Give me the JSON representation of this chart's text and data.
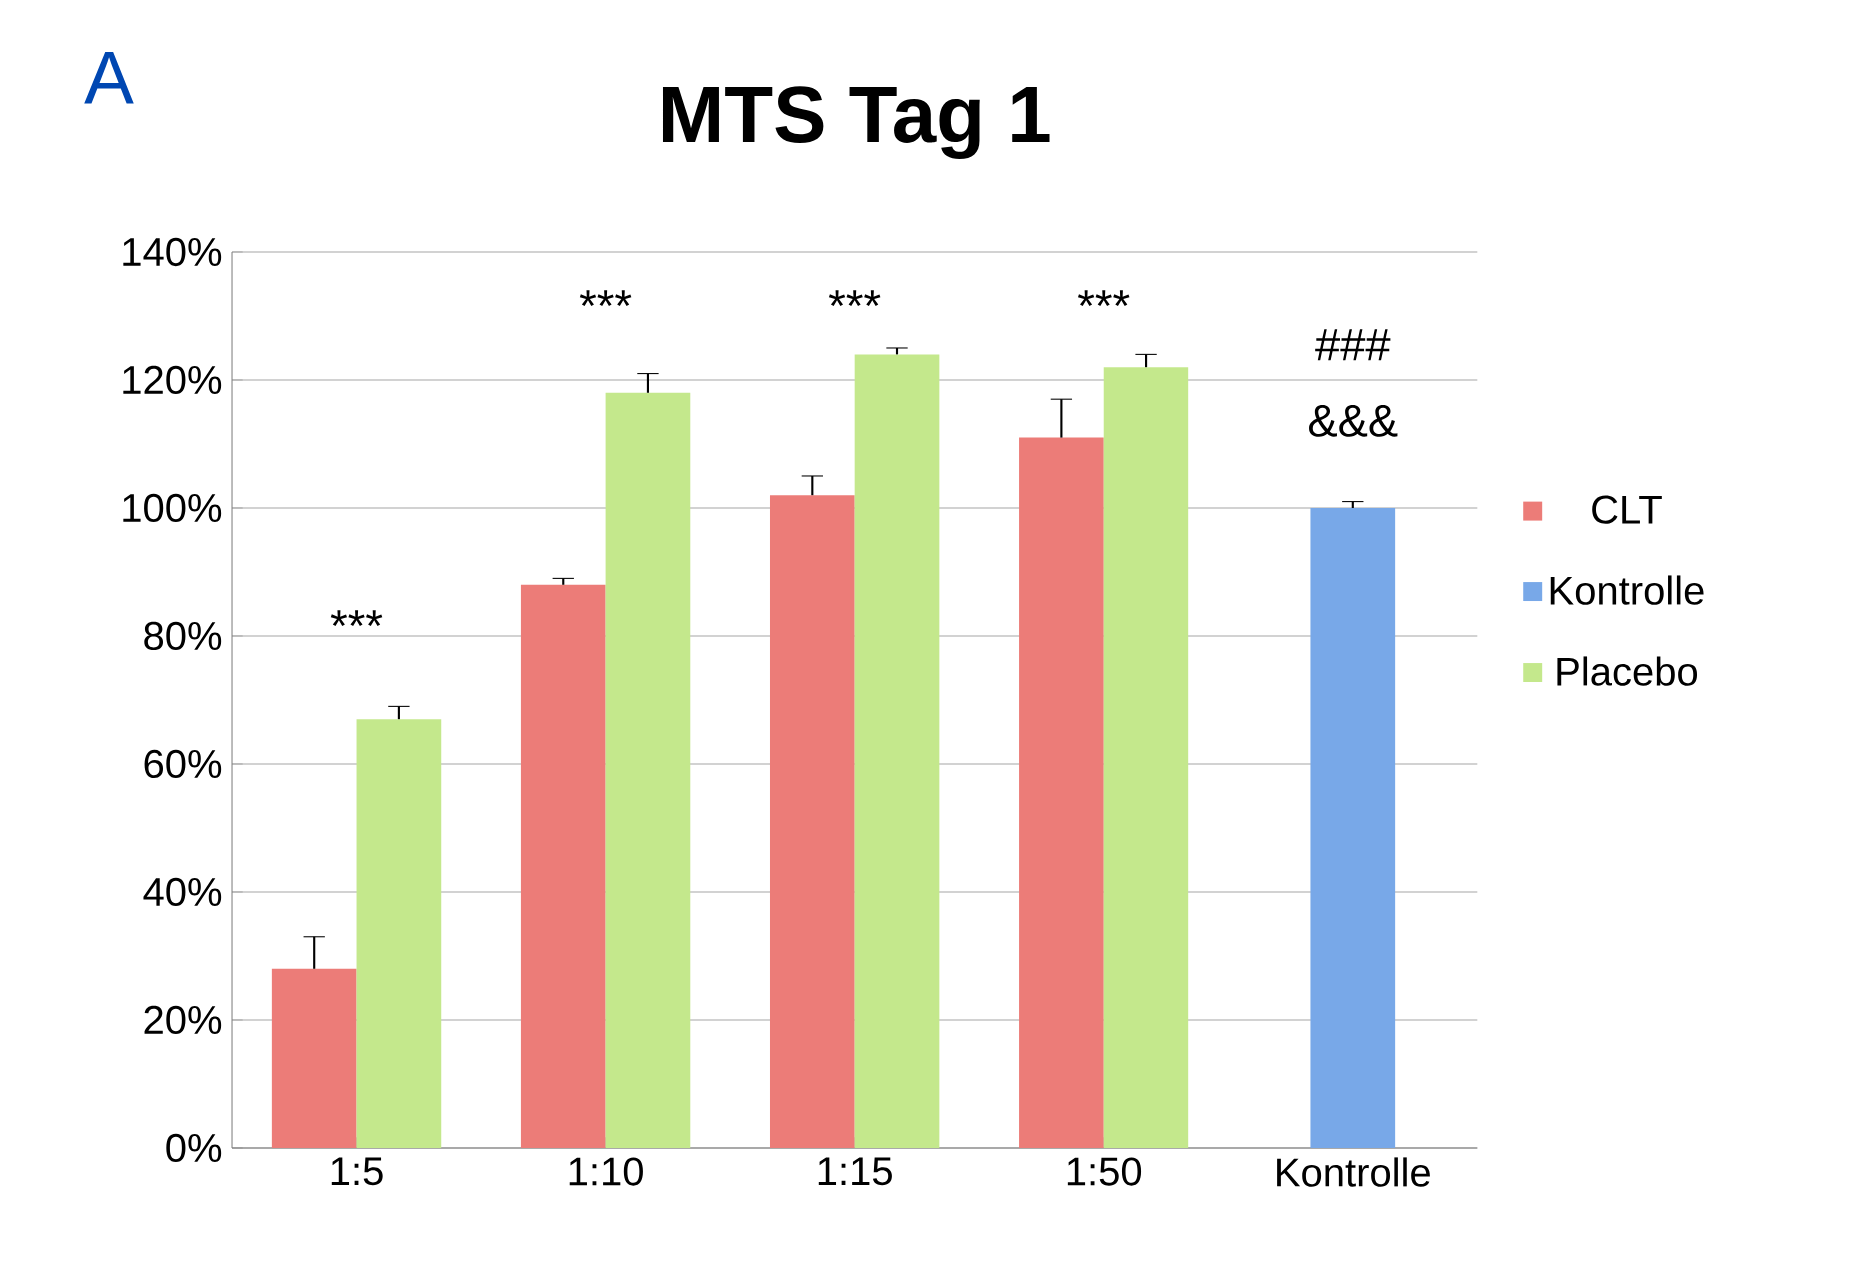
{
  "chart_data": {
    "type": "bar",
    "title": "MTS Tag 1",
    "categories": [
      "1:5",
      "1:10",
      "1:15",
      "1:50",
      "Kontrolle"
    ],
    "series": [
      {
        "name": "CLT",
        "color": "#ec7c78",
        "values": [
          28,
          88,
          102,
          111,
          null
        ],
        "errors": [
          5,
          1,
          3,
          6,
          null
        ]
      },
      {
        "name": "Kontrolle",
        "color": "#78a8e8",
        "values": [
          null,
          null,
          null,
          null,
          100
        ],
        "errors": [
          null,
          null,
          null,
          null,
          1
        ]
      },
      {
        "name": "Placebo",
        "color": "#c4e88c",
        "values": [
          67,
          118,
          124,
          122,
          null
        ],
        "errors": [
          2,
          3,
          1,
          2,
          null
        ]
      }
    ],
    "ylim": [
      0,
      140
    ],
    "yticks": [
      {
        "value": 0,
        "label": "0%"
      },
      {
        "value": 20,
        "label": "20%"
      },
      {
        "value": 40,
        "label": "40%"
      },
      {
        "value": 60,
        "label": "60%"
      },
      {
        "value": 80,
        "label": "80%"
      },
      {
        "value": 100,
        "label": "100%"
      },
      {
        "value": 120,
        "label": "120%"
      },
      {
        "value": 140,
        "label": "140%"
      }
    ],
    "grid": "y",
    "legend": "right",
    "annotations": [
      "A",
      "***",
      "***",
      "***",
      "***",
      "###",
      "&&&"
    ]
  }
}
